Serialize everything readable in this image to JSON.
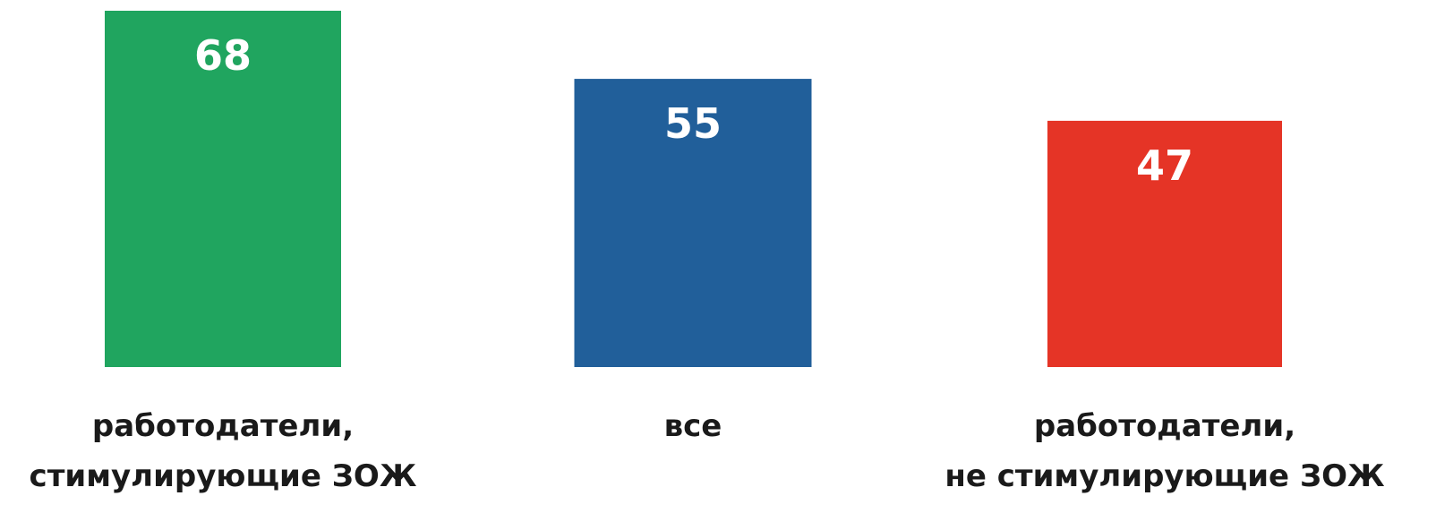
{
  "chart_data": {
    "type": "bar",
    "title": "",
    "xlabel": "",
    "ylabel": "",
    "ylim": [
      0,
      68
    ],
    "grid": false,
    "legend": "none",
    "categories": [
      [
        "работодатели,",
        "стимулирующие ЗОЖ"
      ],
      [
        "все"
      ],
      [
        "работодатели,",
        "не стимулирующие ЗОЖ"
      ]
    ],
    "values": [
      68,
      55,
      47
    ],
    "colors": [
      "#20a55f",
      "#215f9a",
      "#e53426"
    ]
  }
}
